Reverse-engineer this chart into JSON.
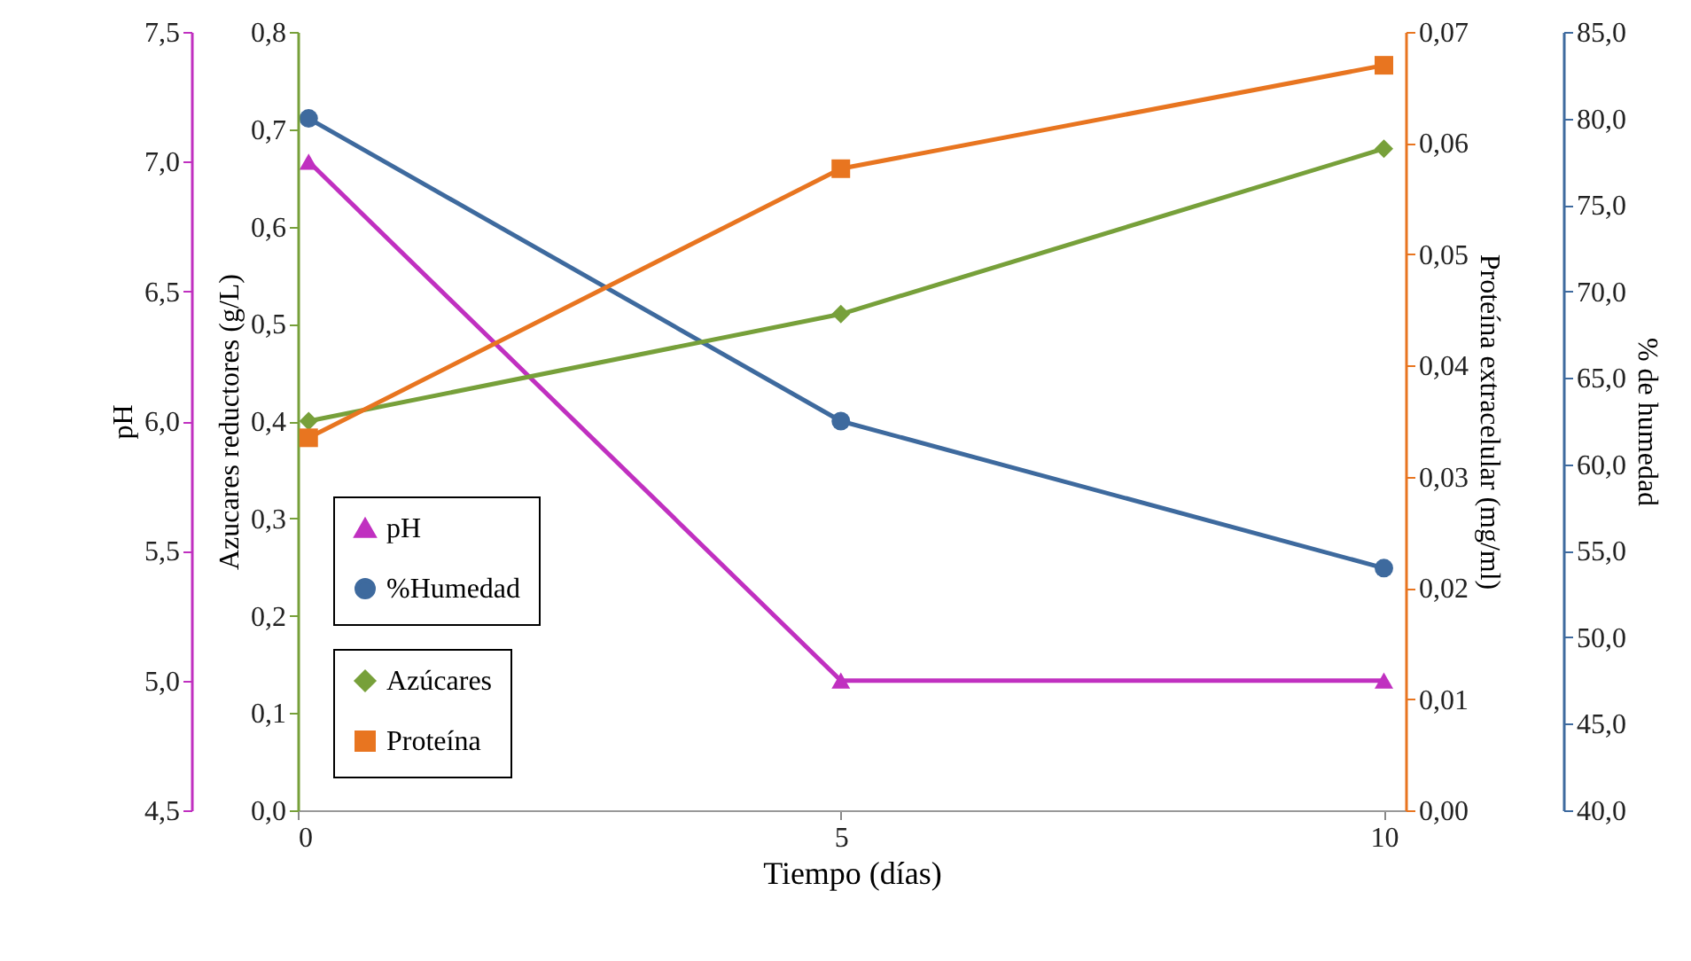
{
  "chart_data": [
    {
      "type": "line",
      "xlabel": "Tiempo (días)",
      "xlim": [
        0,
        10.2
      ],
      "xticks": [
        0,
        5,
        10
      ],
      "ylabel": "pH",
      "ylim": [
        4.5,
        7.5
      ],
      "yticks": [
        {
          "value": 4.5,
          "label": "4,5"
        },
        {
          "value": 5,
          "label": "5,0"
        },
        {
          "value": 5.5,
          "label": "5,5"
        },
        {
          "value": 6,
          "label": "6,0"
        },
        {
          "value": 6.5,
          "label": "6,5"
        },
        {
          "value": 7,
          "label": "7,0"
        },
        {
          "value": 7.5,
          "label": "7,5"
        }
      ],
      "y2label": "% de humedad",
      "y2lim": [
        40,
        85
      ],
      "y2ticks": [
        {
          "value": 40,
          "label": "40,0"
        },
        {
          "value": 45,
          "label": "45,0"
        },
        {
          "value": 50,
          "label": "50,0"
        },
        {
          "value": 55,
          "label": "55,0"
        },
        {
          "value": 60,
          "label": "60,0"
        },
        {
          "value": 65,
          "label": "65,0"
        },
        {
          "value": 70,
          "label": "70,0"
        },
        {
          "value": 75,
          "label": "75,0"
        },
        {
          "value": 80,
          "label": "80,0"
        },
        {
          "value": 85,
          "label": "85,0"
        }
      ],
      "x": [
        0.1,
        5,
        10
      ],
      "grid": false,
      "legend": "bottom left",
      "series": [
        {
          "name": "pH",
          "color": "#c030c0",
          "marker": "triangle",
          "values": [
            7.0,
            5.0,
            5.0
          ]
        },
        {
          "name": "%Humedad",
          "color": "#3e6a9e",
          "marker": "circle",
          "axis": "y2",
          "values": [
            80,
            62.5,
            54
          ]
        }
      ]
    },
    {
      "type": "line",
      "xlim": [
        0,
        10.2
      ],
      "tick_labels": "y",
      "ylabel": "Azucares reductores (g/L)",
      "ylim": [
        0,
        0.8
      ],
      "yticks": [
        {
          "value": 0,
          "label": "0,0"
        },
        {
          "value": 0.1,
          "label": "0,1"
        },
        {
          "value": 0.2,
          "label": "0,2"
        },
        {
          "value": 0.3,
          "label": "0,3"
        },
        {
          "value": 0.4,
          "label": "0,4"
        },
        {
          "value": 0.5,
          "label": "0,5"
        },
        {
          "value": 0.6,
          "label": "0,6"
        },
        {
          "value": 0.7,
          "label": "0,7"
        },
        {
          "value": 0.8,
          "label": "0,8"
        }
      ],
      "y2label": "Proteína extracelular (mg/ml)",
      "y2lim": [
        0,
        0.07
      ],
      "y2ticks": [
        {
          "value": 0,
          "label": "0,00"
        },
        {
          "value": 0.01,
          "label": "0,01"
        },
        {
          "value": 0.02,
          "label": "0,02"
        },
        {
          "value": 0.03,
          "label": "0,03"
        },
        {
          "value": 0.04,
          "label": "0,04"
        },
        {
          "value": 0.05,
          "label": "0,05"
        },
        {
          "value": 0.06,
          "label": "0,06"
        },
        {
          "value": 0.07,
          "label": "0,07"
        }
      ],
      "x": [
        0.1,
        5,
        10
      ],
      "grid": false,
      "legend": "bottom left",
      "series": [
        {
          "name": "Azúcares",
          "color": "#77a03a",
          "marker": "diamond",
          "values": [
            0.4,
            0.51,
            0.68
          ]
        },
        {
          "name": "Proteína",
          "color": "#e87520",
          "marker": "square",
          "axis": "y2",
          "values": [
            0.0335,
            0.0577,
            0.067
          ]
        }
      ]
    }
  ]
}
